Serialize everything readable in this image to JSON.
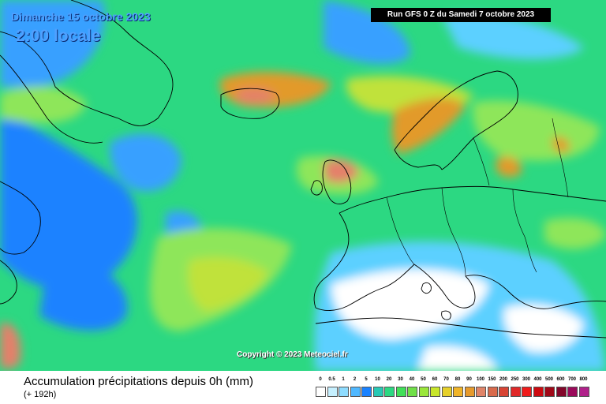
{
  "header": {
    "date": "Dimanche 15 octobre 2023",
    "time": "2:00 locale",
    "run": "Run GFS 0 Z du Samedi 7 octobre 2023"
  },
  "map": {
    "copyright": "Copyright © 2023 Meteociel.fr",
    "colors": {
      "ocean_base": "#2cd882",
      "blue_low": "#1a82ff",
      "blue_mid": "#38a0ff",
      "cyan": "#5cd0ff",
      "light_green": "#8ee65a",
      "yellow_green": "#c0e23a",
      "orange": "#e29a2c",
      "salmon": "#e4806a",
      "white": "#ffffff",
      "coast_line": "#000000"
    }
  },
  "footer": {
    "title": "Accumulation précipitations depuis 0h (mm)",
    "subtitle": "(+ 192h)"
  },
  "legend": {
    "items": [
      {
        "label": "0",
        "color": "#ffffff"
      },
      {
        "label": "0.5",
        "color": "#c6f0ff"
      },
      {
        "label": "1",
        "color": "#8edcff"
      },
      {
        "label": "2",
        "color": "#50b8ff"
      },
      {
        "label": "5",
        "color": "#1a82ff"
      },
      {
        "label": "10",
        "color": "#28c8b4"
      },
      {
        "label": "20",
        "color": "#2cd882"
      },
      {
        "label": "30",
        "color": "#40e058"
      },
      {
        "label": "40",
        "color": "#70e048"
      },
      {
        "label": "50",
        "color": "#9ae63a"
      },
      {
        "label": "60",
        "color": "#c8e62a"
      },
      {
        "label": "70",
        "color": "#e6d02a"
      },
      {
        "label": "80",
        "color": "#f0b428"
      },
      {
        "label": "90",
        "color": "#e69a2c"
      },
      {
        "label": "100",
        "color": "#e08468"
      },
      {
        "label": "150",
        "color": "#d86a4c"
      },
      {
        "label": "200",
        "color": "#d84434"
      },
      {
        "label": "250",
        "color": "#e02828"
      },
      {
        "label": "300",
        "color": "#f01c1c"
      },
      {
        "label": "400",
        "color": "#cc0a10"
      },
      {
        "label": "500",
        "color": "#a00818"
      },
      {
        "label": "600",
        "color": "#82062a"
      },
      {
        "label": "700",
        "color": "#9a0a5a"
      },
      {
        "label": "800",
        "color": "#b0208a"
      }
    ]
  }
}
